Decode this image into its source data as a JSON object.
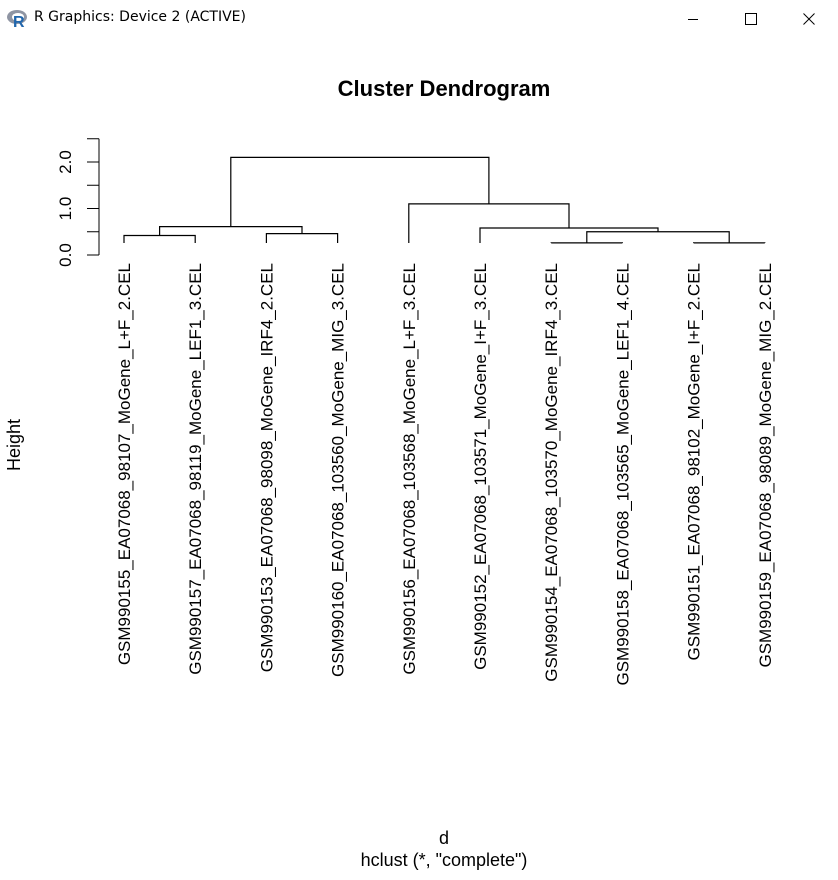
{
  "window": {
    "title": "R Graphics: Device 2 (ACTIVE)",
    "icon": "r-logo-icon",
    "controls": {
      "minimize": "minimize-icon",
      "maximize": "maximize-icon",
      "close": "close-icon"
    }
  },
  "chart_data": {
    "type": "dendrogram",
    "title": "Cluster Dendrogram",
    "xlabel": "d",
    "sub": "hclust (*, \"complete\")",
    "ylabel": "Height",
    "ylim": [
      0,
      2.5
    ],
    "yticks": [
      0.0,
      0.5,
      1.0,
      1.5,
      2.0,
      2.5
    ],
    "yticklabels": [
      "0.0",
      "1.0",
      "2.0"
    ],
    "yticklabel_values": [
      0.0,
      1.0,
      2.0
    ],
    "leaves": [
      "GSM990155_EA07068_98107_MoGene_L+F_2.CEL",
      "GSM990157_EA07068_98119_MoGene_LEF1_3.CEL",
      "GSM990153_EA07068_98098_MoGene_IRF4_2.CEL",
      "GSM990160_EA07068_103560_MoGene_MIG_3.CEL",
      "GSM990156_EA07068_103568_MoGene_L+F_3.CEL",
      "GSM990152_EA07068_103571_MoGene_I+F_3.CEL",
      "GSM990154_EA07068_103570_MoGene_IRF4_3.CEL",
      "GSM990158_EA07068_103565_MoGene_LEF1_4.CEL",
      "GSM990151_EA07068_98102_MoGene_I+F_2.CEL",
      "GSM990159_EA07068_98089_MoGene_MIG_2.CEL"
    ],
    "merges": [
      {
        "left": "leaf:0",
        "right": "leaf:1",
        "height": 0.42
      },
      {
        "left": "leaf:2",
        "right": "leaf:3",
        "height": 0.46
      },
      {
        "left": "node:0",
        "right": "node:1",
        "height": 0.61
      },
      {
        "left": "leaf:6",
        "right": "leaf:7",
        "height": 0.26
      },
      {
        "left": "leaf:8",
        "right": "leaf:9",
        "height": 0.26
      },
      {
        "left": "node:3",
        "right": "node:4",
        "height": 0.5
      },
      {
        "left": "leaf:5",
        "right": "node:5",
        "height": 0.58
      },
      {
        "left": "leaf:4",
        "right": "node:6",
        "height": 1.1
      },
      {
        "left": "node:2",
        "right": "node:7",
        "height": 2.1
      }
    ]
  }
}
